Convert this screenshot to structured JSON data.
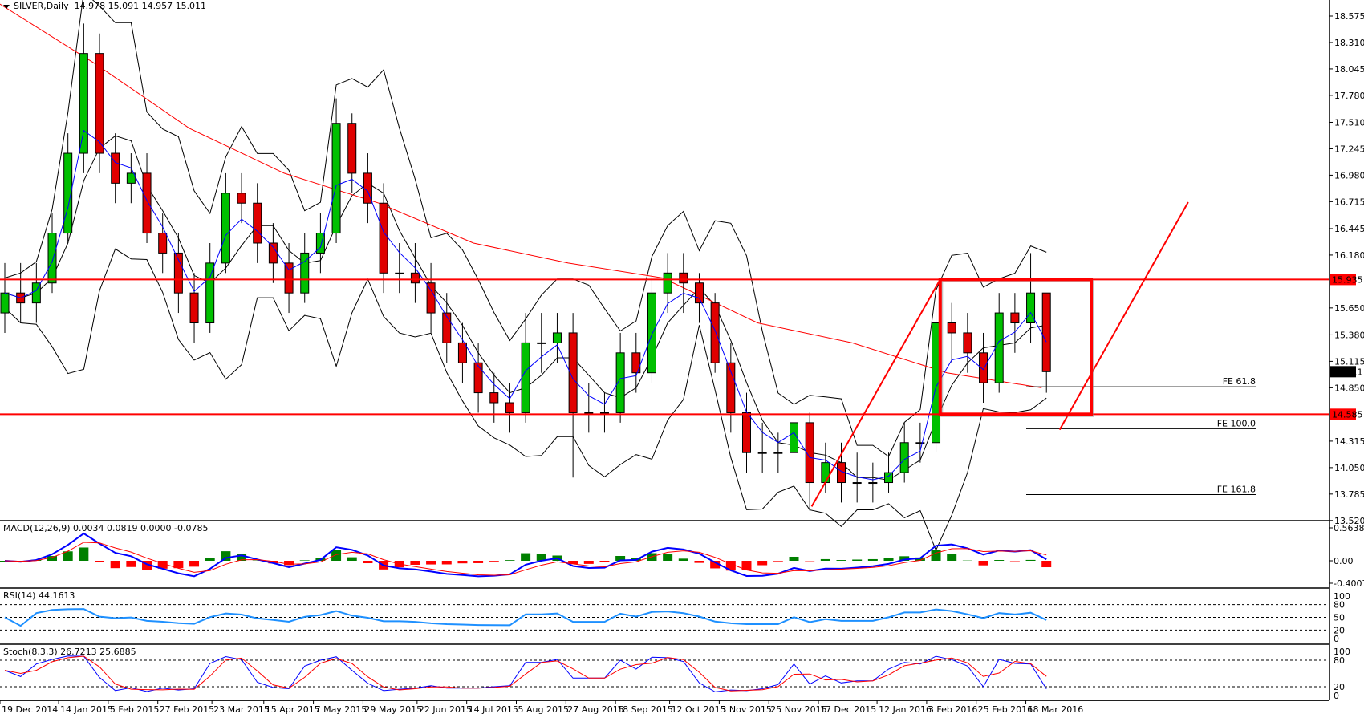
{
  "header": {
    "symbol_label": "SILVER,Daily",
    "ohlc": "14.978 15.091 14.957 15.011"
  },
  "chart_data": {
    "type": "candlestick",
    "title": "SILVER,Daily",
    "period_note": "candles approximated weekly from daily chart",
    "start_date": "2014-12-19",
    "price_range": [
      13.52,
      18.575
    ],
    "price_ticks": [
      "18.575",
      "18.310",
      "18.045",
      "17.780",
      "17.510",
      "17.245",
      "16.980",
      "16.715",
      "16.445",
      "16.180",
      "15.650",
      "15.380",
      "15.115",
      "14.850",
      "14.315",
      "14.050",
      "13.785",
      "13.520"
    ],
    "date_ticks": [
      {
        "date": "2014-12-19",
        "label": "19 Dec 2014"
      },
      {
        "date": "2015-01-14",
        "label": "14 Jan 2015"
      },
      {
        "date": "2015-02-05",
        "label": "5 Feb 2015"
      },
      {
        "date": "2015-02-27",
        "label": "27 Feb 2015"
      },
      {
        "date": "2015-03-23",
        "label": "23 Mar 2015"
      },
      {
        "date": "2015-04-15",
        "label": "15 Apr 2015"
      },
      {
        "date": "2015-05-07",
        "label": "7 May 2015"
      },
      {
        "date": "2015-05-29",
        "label": "29 May 2015"
      },
      {
        "date": "2015-06-22",
        "label": "22 Jun 2015"
      },
      {
        "date": "2015-07-14",
        "label": "14 Jul 2015"
      },
      {
        "date": "2015-08-05",
        "label": "5 Aug 2015"
      },
      {
        "date": "2015-08-27",
        "label": "27 Aug 2015"
      },
      {
        "date": "2015-09-18",
        "label": "18 Sep 2015"
      },
      {
        "date": "2015-10-12",
        "label": "12 Oct 2015"
      },
      {
        "date": "2015-11-03",
        "label": "3 Nov 2015"
      },
      {
        "date": "2015-11-25",
        "label": "25 Nov 2015"
      },
      {
        "date": "2015-12-17",
        "label": "17 Dec 2015"
      },
      {
        "date": "2016-01-12",
        "label": "12 Jan 2016"
      },
      {
        "date": "2016-02-03",
        "label": "3 Feb 2016"
      },
      {
        "date": "2016-02-25",
        "label": "25 Feb 2016"
      },
      {
        "date": "2016-03-18",
        "label": "18 Mar 2016"
      }
    ],
    "open": [
      15.6,
      15.8,
      15.7,
      15.9,
      16.4,
      17.2,
      18.2,
      17.2,
      16.9,
      17.0,
      16.4,
      16.2,
      15.8,
      15.5,
      16.1,
      16.8,
      16.7,
      16.3,
      16.1,
      15.8,
      16.2,
      16.4,
      17.5,
      17.0,
      16.7,
      16.0,
      16.0,
      15.9,
      15.6,
      15.3,
      15.1,
      14.8,
      14.7,
      14.6,
      15.3,
      15.3,
      15.4,
      14.6,
      14.6,
      14.6,
      15.2,
      15.0,
      15.8,
      16.0,
      15.9,
      15.7,
      15.1,
      14.6,
      14.2,
      14.2,
      14.2,
      14.5,
      13.9,
      14.1,
      13.9,
      13.9,
      13.9,
      14.0,
      14.3,
      14.3,
      15.5,
      15.4,
      15.2,
      14.9,
      15.6,
      15.5,
      15.8
    ],
    "high": [
      16.1,
      16.1,
      16.1,
      16.6,
      17.4,
      18.5,
      18.4,
      17.4,
      17.2,
      17.2,
      16.6,
      16.4,
      16.0,
      16.3,
      17.0,
      17.0,
      16.9,
      16.5,
      16.3,
      16.4,
      16.6,
      17.75,
      17.6,
      17.2,
      16.9,
      16.3,
      16.3,
      16.1,
      15.8,
      15.5,
      15.3,
      15.0,
      14.9,
      15.6,
      15.6,
      15.6,
      15.6,
      14.9,
      14.8,
      15.4,
      15.4,
      16.0,
      16.2,
      16.2,
      16.0,
      15.8,
      15.3,
      14.8,
      14.5,
      14.4,
      14.7,
      14.6,
      14.3,
      14.3,
      14.2,
      14.1,
      14.2,
      14.5,
      14.5,
      15.7,
      15.7,
      15.6,
      15.4,
      15.8,
      15.8,
      16.2,
      15.8
    ],
    "low": [
      15.4,
      15.5,
      15.5,
      15.8,
      16.3,
      17.0,
      17.0,
      16.7,
      16.7,
      16.3,
      16.0,
      15.6,
      15.3,
      15.4,
      16.0,
      16.5,
      16.1,
      15.9,
      15.6,
      15.7,
      16.0,
      16.3,
      16.8,
      16.5,
      15.8,
      15.8,
      15.7,
      15.4,
      15.1,
      14.9,
      14.6,
      14.5,
      14.4,
      14.5,
      15.0,
      15.1,
      13.95,
      14.4,
      14.4,
      14.5,
      14.8,
      14.9,
      15.6,
      15.6,
      15.5,
      15.0,
      14.4,
      14.0,
      14.0,
      14.0,
      14.1,
      13.62,
      13.8,
      13.7,
      13.7,
      13.7,
      13.8,
      13.9,
      14.1,
      14.2,
      15.1,
      15.0,
      14.7,
      14.8,
      15.2,
      15.3,
      14.8
    ],
    "close": [
      15.8,
      15.7,
      15.9,
      16.4,
      17.2,
      18.2,
      17.2,
      16.9,
      17.0,
      16.4,
      16.2,
      15.8,
      15.5,
      16.1,
      16.8,
      16.7,
      16.3,
      16.1,
      15.8,
      16.2,
      16.4,
      17.5,
      17.0,
      16.7,
      16.0,
      16.0,
      15.9,
      15.6,
      15.3,
      15.1,
      14.8,
      14.7,
      14.6,
      15.3,
      15.3,
      15.4,
      14.6,
      14.6,
      14.6,
      15.2,
      15.0,
      15.8,
      16.0,
      15.9,
      15.7,
      15.1,
      14.6,
      14.2,
      14.2,
      14.2,
      14.5,
      13.9,
      14.1,
      13.9,
      13.9,
      13.9,
      14.0,
      14.3,
      14.3,
      15.5,
      15.4,
      15.2,
      14.9,
      15.6,
      15.5,
      15.8,
      15.011
    ],
    "ma_long": [
      {
        "date": "2014-12-15",
        "price": 18.75
      },
      {
        "date": "2015-01-30",
        "price": 18.1
      },
      {
        "date": "2015-03-13",
        "price": 17.45
      },
      {
        "date": "2015-04-24",
        "price": 17.0
      },
      {
        "date": "2015-06-05",
        "price": 16.7
      },
      {
        "date": "2015-07-17",
        "price": 16.3
      },
      {
        "date": "2015-08-28",
        "price": 16.1
      },
      {
        "date": "2015-10-09",
        "price": 15.95
      },
      {
        "date": "2015-11-20",
        "price": 15.5
      },
      {
        "date": "2016-01-01",
        "price": 15.3
      },
      {
        "date": "2016-02-12",
        "price": 15.0
      },
      {
        "date": "2016-03-25",
        "price": 14.85
      }
    ],
    "levels": [
      {
        "price": 15.935,
        "label": "15.935",
        "color": "#ff0000"
      },
      {
        "price": 14.585,
        "label": "14.585",
        "color": "#ff0000"
      }
    ],
    "current_price": {
      "price": 15.011,
      "label": "15.011"
    },
    "fe_lines": [
      {
        "price": 14.86,
        "label": "FE 61.8"
      },
      {
        "price": 14.44,
        "label": "FE 100.0"
      },
      {
        "price": 13.78,
        "label": "FE 161.8"
      }
    ],
    "trend_lines": [
      {
        "from": {
          "date": "2015-12-14",
          "price": 13.66
        },
        "to": {
          "date": "2016-02-09",
          "price": 15.935
        },
        "color": "#ff0000"
      },
      {
        "from": {
          "date": "2016-04-02",
          "price": 14.43
        },
        "to": {
          "date": "2016-05-29",
          "price": 16.71
        },
        "color": "#ff0000"
      }
    ],
    "rectangle": {
      "from": {
        "date": "2016-02-09",
        "price": 15.935
      },
      "to": {
        "date": "2016-04-16",
        "price": 14.585
      },
      "color": "#ff0000"
    },
    "colors": {
      "bull": "#00c000",
      "bear": "#e00000",
      "bands": "#000000",
      "ma_fast": "#0000ff",
      "ma_long": "#ff0000"
    },
    "indicators": {
      "macd": {
        "label": "MACD(12,26,9) 0.0034 0.0819 0.0000 -0.0785",
        "ticks": [
          "0.5638",
          "0.00",
          "-0.4007"
        ]
      },
      "rsi": {
        "label": "RSI(14) 44.1613",
        "ticks": [
          "100",
          "80",
          "50",
          "20",
          "0"
        ]
      },
      "stoch": {
        "label": "Stoch(8,3,3) 26.7213 25.6885",
        "ticks": [
          "100",
          "80",
          "20",
          "0"
        ]
      }
    }
  }
}
